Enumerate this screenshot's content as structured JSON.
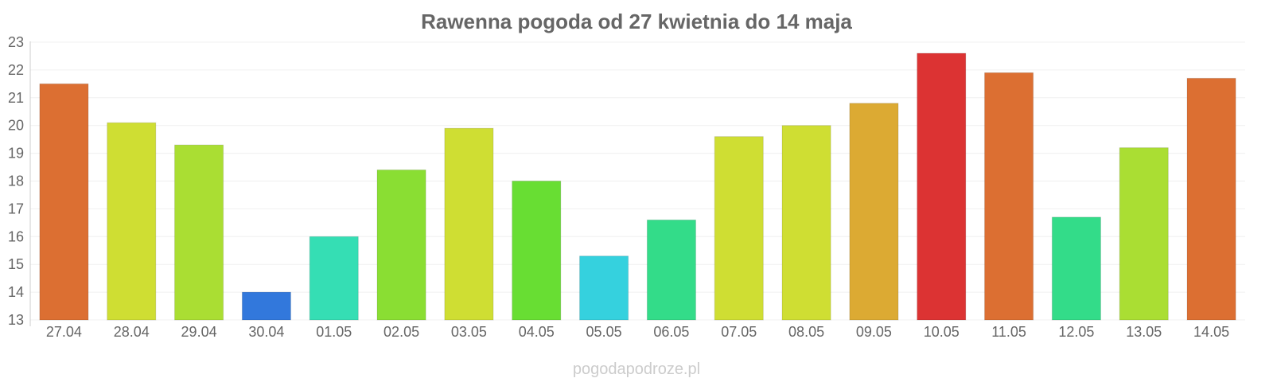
{
  "chart_data": {
    "type": "bar",
    "title": "Rawenna pogoda od 27 kwietnia do 14 maja",
    "xlabel": "",
    "ylabel": "",
    "categories": [
      "27.04",
      "28.04",
      "29.04",
      "30.04",
      "01.05",
      "02.05",
      "03.05",
      "04.05",
      "05.05",
      "06.05",
      "07.05",
      "08.05",
      "09.05",
      "10.05",
      "11.05",
      "12.05",
      "13.05",
      "14.05"
    ],
    "values": [
      21.5,
      20.1,
      19.3,
      14.0,
      16.0,
      18.4,
      19.9,
      18.0,
      15.3,
      16.6,
      19.6,
      20.0,
      20.8,
      22.6,
      21.9,
      16.7,
      19.2,
      21.7
    ],
    "colors": [
      "#dc6f32",
      "#cfde33",
      "#aade33",
      "#3278dc",
      "#35deb4",
      "#8ade33",
      "#cfde33",
      "#68de33",
      "#35d1de",
      "#33dc89",
      "#cfde33",
      "#cfde33",
      "#dcaa33",
      "#dc3333",
      "#dc6f32",
      "#33dc89",
      "#aade33",
      "#dc6f32"
    ],
    "ylim": [
      13,
      23
    ],
    "yticks": [
      "13",
      "14",
      "15",
      "16",
      "17",
      "18",
      "19",
      "20",
      "21",
      "22",
      "23"
    ],
    "grid": true,
    "legend": "none"
  },
  "watermark": "pogodapodroze.pl"
}
